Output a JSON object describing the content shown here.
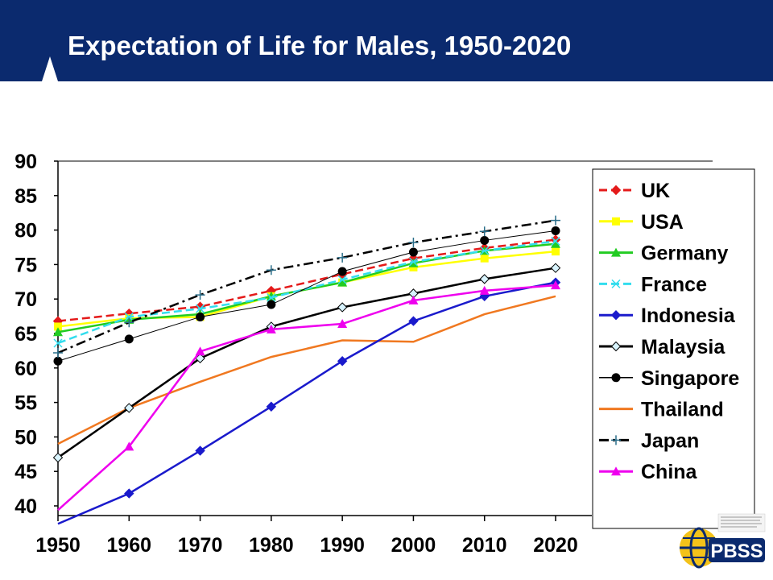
{
  "header": {
    "title": "Expectation of Life for Males, 1950-2020"
  },
  "logo": {
    "text": "PBSS"
  },
  "chart_data": {
    "type": "line",
    "title": "Expectation of Life for Males, 1950-2020",
    "xlabel": "",
    "ylabel": "",
    "x": [
      1950,
      1960,
      1970,
      1980,
      1990,
      2000,
      2010,
      2020
    ],
    "yticks": [
      40,
      45,
      50,
      55,
      60,
      65,
      70,
      75,
      80,
      85,
      90
    ],
    "ylim": [
      40,
      90
    ],
    "grid": false,
    "legend_position": "right",
    "series": [
      {
        "name": "UK",
        "color": "#e41a1a",
        "marker": "diamond",
        "dash": "dash",
        "values": [
          66.8,
          67.9,
          68.9,
          71.2,
          73.6,
          75.9,
          77.4,
          78.6
        ]
      },
      {
        "name": "USA",
        "color": "#ffff00",
        "marker": "square",
        "dash": "solid",
        "values": [
          66.0,
          67.2,
          67.4,
          70.4,
          72.4,
          74.6,
          75.9,
          76.9
        ]
      },
      {
        "name": "Germany",
        "color": "#22cc22",
        "marker": "triangle",
        "dash": "solid",
        "values": [
          65.2,
          67.0,
          67.8,
          70.4,
          72.4,
          75.2,
          77.0,
          78.0
        ]
      },
      {
        "name": "France",
        "color": "#33ddee",
        "marker": "x",
        "dash": "dash",
        "values": [
          63.6,
          67.4,
          68.6,
          70.2,
          72.8,
          75.4,
          77.0,
          78.4
        ]
      },
      {
        "name": "Indonesia",
        "color": "#1a1acc",
        "marker": "diamond",
        "dash": "solid",
        "values": [
          37.4,
          41.8,
          48.0,
          54.4,
          61.0,
          66.8,
          70.4,
          72.4
        ]
      },
      {
        "name": "Malaysia",
        "color": "#000000",
        "marker": "open-diamond",
        "dash": "solid",
        "values": [
          47.0,
          54.2,
          61.4,
          66.0,
          68.8,
          70.8,
          72.9,
          74.5
        ]
      },
      {
        "name": "Singapore",
        "color": "#000000",
        "marker": "circle",
        "dash": "thin",
        "values": [
          61.0,
          64.2,
          67.4,
          69.2,
          74.0,
          76.8,
          78.5,
          79.9
        ]
      },
      {
        "name": "Thailand",
        "color": "#f07820",
        "marker": "none",
        "dash": "solid",
        "values": [
          49.0,
          54.2,
          58.0,
          61.6,
          64.0,
          63.8,
          67.8,
          70.4
        ]
      },
      {
        "name": "Japan",
        "color": "#000000",
        "marker": "plus",
        "dash": "dashdot",
        "values": [
          62.2,
          66.6,
          70.6,
          74.2,
          76.0,
          78.2,
          79.8,
          81.4
        ]
      },
      {
        "name": "China",
        "color": "#ee00ee",
        "marker": "triangle",
        "dash": "solid",
        "values": [
          39.4,
          48.6,
          62.4,
          65.6,
          66.4,
          69.8,
          71.2,
          72.0
        ]
      }
    ]
  }
}
